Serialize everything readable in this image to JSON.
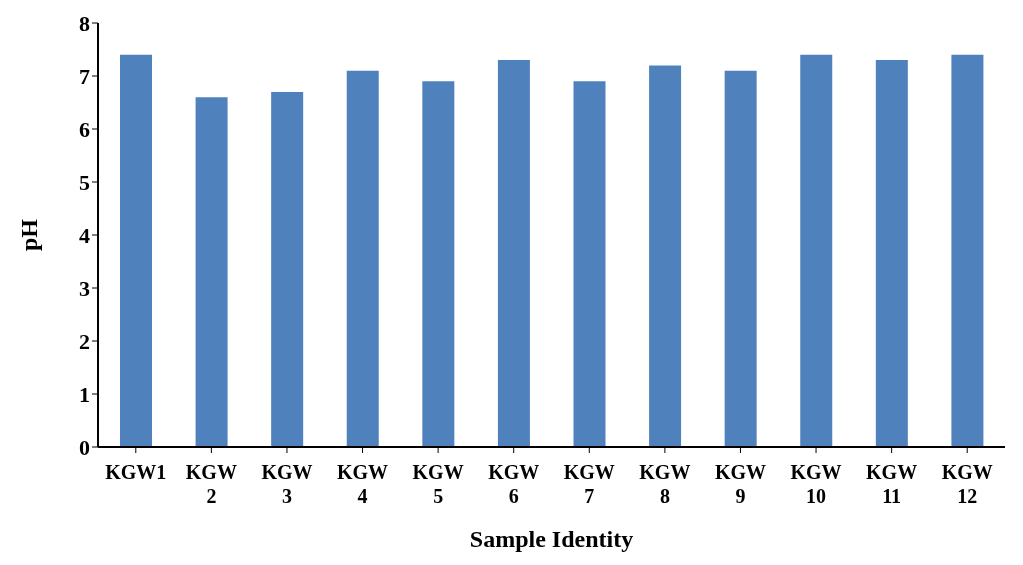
{
  "chart_data": {
    "type": "bar",
    "xlabel": "Sample Identity",
    "ylabel": "pH",
    "categories": [
      "KGW1",
      "KGW 2",
      "KGW 3",
      "KGW 4",
      "KGW 5",
      "KGW 6",
      "KGW 7",
      "KGW 8",
      "KGW 9",
      "KGW 10",
      "KGW 11",
      "KGW 12"
    ],
    "values": [
      7.4,
      6.6,
      6.7,
      7.1,
      6.9,
      7.3,
      6.9,
      7.2,
      7.1,
      7.4,
      7.3,
      7.4
    ],
    "color": "#4f81bd",
    "ylim": [
      0,
      8
    ],
    "yticks": [
      0,
      1,
      2,
      3,
      4,
      5,
      6,
      7,
      8
    ],
    "grid": false,
    "legend": false
  }
}
